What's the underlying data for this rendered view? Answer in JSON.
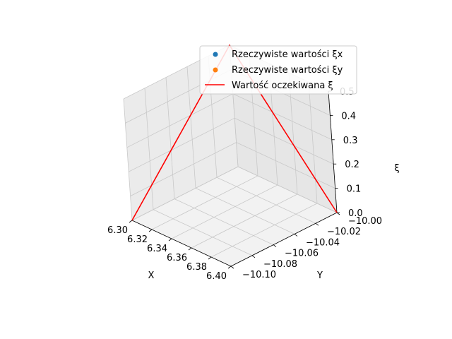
{
  "chart_data": {
    "type": "scatter",
    "projection": "3d",
    "xlabel": "X",
    "ylabel": "Y",
    "zlabel": "ξ",
    "xlim": [
      6.3,
      6.4
    ],
    "ylim": [
      -10.1,
      -10.0
    ],
    "zlim": [
      0.0,
      0.5
    ],
    "x_ticks": [
      "6.30",
      "6.32",
      "6.34",
      "6.36",
      "6.38",
      "6.40"
    ],
    "y_ticks": [
      "−10.00",
      "−10.02",
      "−10.04",
      "−10.06",
      "−10.08",
      "−10.10"
    ],
    "z_ticks": [
      "0.0",
      "0.1",
      "0.2",
      "0.3",
      "0.4",
      "0.5"
    ],
    "grid": true,
    "legend_position": "top-right",
    "legend": [
      {
        "label": "Rzeczywiste wartości ξx",
        "color": "#1f77b4",
        "marker": "circle"
      },
      {
        "label": "Rzeczywiste wartości ξy",
        "color": "#ff7f0e",
        "marker": "circle"
      },
      {
        "label": "Wartość oczekiwana ξ",
        "color": "#ff0000",
        "marker": "line"
      }
    ],
    "series": [
      {
        "name": "Rzeczywiste wartości ξx",
        "kind": "scatter",
        "color": "#1f77b4",
        "points": []
      },
      {
        "name": "Rzeczywiste wartości ξy",
        "kind": "scatter",
        "color": "#ff7f0e",
        "points": []
      },
      {
        "name": "Wartość oczekiwana ξ",
        "kind": "line",
        "color": "#ff0000",
        "points": [
          {
            "x": 6.3,
            "y": -10.1,
            "z": 0.0
          },
          {
            "x": 6.3,
            "y": -10.0,
            "z": 0.5
          },
          {
            "x": 6.4,
            "y": -10.0,
            "z": 0.0
          }
        ]
      }
    ]
  }
}
